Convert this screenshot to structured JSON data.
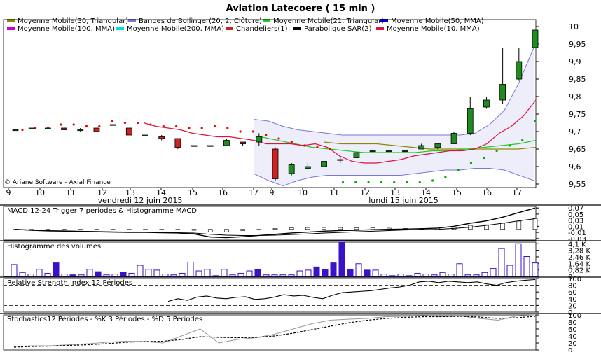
{
  "window": {
    "title": "Aviation Latecoere   ( 15 min )",
    "copyright": "© Ariane Software - Axial Finance"
  },
  "legend": [
    {
      "label": "Moyenne Mobile(30, Triangular)",
      "color": "#8a8a00"
    },
    {
      "label": "Bandes de Bollinger(20, 2, Clôture)",
      "color": "#7777dd"
    },
    {
      "label": "Moyenne Mobile(21, Triangular)",
      "color": "#22cc22"
    },
    {
      "label": "Moyenne Mobile(50, MMA)",
      "color": "#0000cc"
    },
    {
      "label": "Moyenne Mobile(100, MMA)",
      "color": "#cc00cc"
    },
    {
      "label": "Moyenne Mobile(200, MMA)",
      "color": "#00dddd"
    },
    {
      "label": "Chandeliers(1)",
      "color": "#cc2222"
    },
    {
      "label": "Parabolique SAR(2)",
      "color": "#000000"
    },
    {
      "label": "Moyenne Mobile(10, MMA)",
      "color": "#dd1144"
    }
  ],
  "chart_data": [
    {
      "type": "candlestick",
      "title": "Aviation Latecoere   ( 15 min )",
      "ylim": [
        9.54,
        10.02
      ],
      "y_ticks": [
        "10",
        "9,95",
        "9,9",
        "9,85",
        "9,8",
        "9,75",
        "9,7",
        "9,65",
        "9,6",
        "9,55"
      ],
      "y_tick_values": [
        10,
        9.95,
        9.9,
        9.85,
        9.8,
        9.75,
        9.7,
        9.65,
        9.6,
        9.55
      ],
      "x_tick_labels": [
        "9",
        "10",
        "11",
        "12",
        "13",
        "14",
        "15",
        "16",
        "17",
        "9",
        "10",
        "11",
        "12",
        "13",
        "14",
        "15",
        "16",
        "17"
      ],
      "day_labels": [
        "vendredi 12 juin 2015",
        "lundi 15 juin 2015"
      ],
      "candles": [
        {
          "o": 9.705,
          "h": 9.705,
          "l": 9.705,
          "c": 9.705
        },
        {
          "o": 9.71,
          "h": 9.71,
          "l": 9.71,
          "c": 9.71
        },
        {
          "o": 9.71,
          "h": 9.71,
          "l": 9.71,
          "c": 9.71
        },
        {
          "o": 9.71,
          "h": 9.715,
          "l": 9.7,
          "c": 9.705
        },
        {
          "o": 9.705,
          "h": 9.71,
          "l": 9.7,
          "c": 9.705
        },
        {
          "o": 9.71,
          "h": 9.71,
          "l": 9.7,
          "c": 9.7
        },
        {
          "o": 9.72,
          "h": 9.72,
          "l": 9.72,
          "c": 9.72
        },
        {
          "o": 9.71,
          "h": 9.71,
          "l": 9.69,
          "c": 9.69
        },
        {
          "o": 9.69,
          "h": 9.69,
          "l": 9.69,
          "c": 9.69
        },
        {
          "o": 9.685,
          "h": 9.69,
          "l": 9.675,
          "c": 9.68
        },
        {
          "o": 9.68,
          "h": 9.68,
          "l": 9.65,
          "c": 9.655
        },
        {
          "o": 9.66,
          "h": 9.66,
          "l": 9.66,
          "c": 9.66
        },
        {
          "o": 9.66,
          "h": 9.66,
          "l": 9.66,
          "c": 9.66
        },
        {
          "o": 9.66,
          "h": 9.68,
          "l": 9.66,
          "c": 9.675
        },
        {
          "o": 9.67,
          "h": 9.67,
          "l": 9.66,
          "c": 9.665
        },
        {
          "o": 9.67,
          "h": 9.695,
          "l": 9.66,
          "c": 9.685
        },
        {
          "o": 9.65,
          "h": 9.655,
          "l": 9.56,
          "c": 9.565
        },
        {
          "o": 9.58,
          "h": 9.61,
          "l": 9.575,
          "c": 9.605
        },
        {
          "o": 9.595,
          "h": 9.61,
          "l": 9.59,
          "c": 9.6
        },
        {
          "o": 9.6,
          "h": 9.615,
          "l": 9.6,
          "c": 9.615
        },
        {
          "o": 9.62,
          "h": 9.63,
          "l": 9.61,
          "c": 9.62
        },
        {
          "o": 9.625,
          "h": 9.64,
          "l": 9.625,
          "c": 9.64
        },
        {
          "o": 9.645,
          "h": 9.645,
          "l": 9.645,
          "c": 9.645
        },
        {
          "o": 9.645,
          "h": 9.645,
          "l": 9.645,
          "c": 9.645
        },
        {
          "o": 9.645,
          "h": 9.645,
          "l": 9.645,
          "c": 9.645
        },
        {
          "o": 9.65,
          "h": 9.665,
          "l": 9.65,
          "c": 9.66
        },
        {
          "o": 9.655,
          "h": 9.665,
          "l": 9.65,
          "c": 9.665
        },
        {
          "o": 9.665,
          "h": 9.7,
          "l": 9.665,
          "c": 9.695
        },
        {
          "o": 9.695,
          "h": 9.8,
          "l": 9.69,
          "c": 9.765
        },
        {
          "o": 9.77,
          "h": 9.8,
          "l": 9.765,
          "c": 9.79
        },
        {
          "o": 9.79,
          "h": 9.94,
          "l": 9.78,
          "c": 9.835
        },
        {
          "o": 9.85,
          "h": 9.94,
          "l": 9.845,
          "c": 9.9
        },
        {
          "o": 9.94,
          "h": 9.99,
          "l": 9.94,
          "c": 9.99
        }
      ],
      "bollinger": {
        "upper": [
          9.735,
          9.73,
          9.715,
          9.705,
          9.7,
          9.695,
          9.69,
          9.69,
          9.69,
          9.69,
          9.69,
          9.69,
          9.69,
          9.69,
          9.69,
          9.695,
          9.72,
          9.76,
          9.84,
          9.94
        ],
        "lower": [
          9.58,
          9.56,
          9.545,
          9.56,
          9.57,
          9.575,
          9.575,
          9.575,
          9.575,
          9.575,
          9.575,
          9.58,
          9.585,
          9.59,
          9.59,
          9.595,
          9.595,
          9.59,
          9.575,
          9.56
        ]
      },
      "mm10": [
        9.725,
        9.715,
        9.71,
        9.705,
        9.695,
        9.69,
        9.685,
        9.685,
        9.68,
        9.675,
        9.665,
        9.665,
        9.665,
        9.66,
        9.665,
        9.655,
        9.63,
        9.615,
        9.61,
        9.61,
        9.615,
        9.62,
        9.63,
        9.635,
        9.64,
        9.645,
        9.645,
        9.65,
        9.665,
        9.695,
        9.715,
        9.745,
        9.79
      ],
      "mm21": [
        9.685,
        9.675,
        9.665,
        9.655,
        9.65,
        9.645,
        9.64,
        9.64,
        9.64,
        9.64,
        9.645,
        9.645,
        9.65,
        9.655,
        9.66,
        9.665,
        9.675
      ],
      "mm30": [
        9.67,
        9.665,
        9.665,
        9.665,
        9.66,
        9.655,
        9.65,
        9.65,
        9.65,
        9.65,
        9.65,
        9.65,
        9.655
      ],
      "sar": [
        9.705,
        9.71,
        9.71,
        9.72,
        9.72,
        9.715,
        9.715,
        9.73,
        9.725,
        9.725,
        9.72,
        9.715,
        9.715,
        9.71,
        9.71,
        9.715,
        9.71,
        9.7,
        9.7,
        9.69,
        9.68,
        9.67,
        9.66,
        9.655,
        9.65,
        9.555,
        9.555,
        9.555,
        9.555,
        9.555,
        9.555,
        9.555,
        9.56,
        9.57,
        9.59,
        9.61,
        9.625,
        9.645,
        9.66,
        9.675,
        9.73
      ]
    },
    {
      "type": "line",
      "title": "MACD 12-24   Trigger 7 periodes & Histogramme MACD",
      "y_ticks": [
        "0,07",
        "0,05",
        "0,03",
        "0,01",
        "-0,01",
        "-0,03"
      ],
      "y_tick_values": [
        0.07,
        0.05,
        0.03,
        0.01,
        -0.01,
        -0.03
      ],
      "ylim": [
        -0.035,
        0.075
      ],
      "macd": [
        0.0,
        -0.003,
        -0.005,
        -0.006,
        -0.007,
        -0.008,
        -0.009,
        -0.01,
        -0.01,
        -0.011,
        -0.012,
        -0.015,
        -0.025,
        -0.027,
        -0.024,
        -0.02,
        -0.016,
        -0.012,
        -0.009,
        -0.006,
        -0.004,
        -0.003,
        -0.001,
        0.0,
        0.001,
        0.002,
        0.004,
        0.01,
        0.02,
        0.028,
        0.04,
        0.055,
        0.07
      ],
      "signal": [
        0.0,
        -0.002,
        -0.004,
        -0.005,
        -0.006,
        -0.007,
        -0.008,
        -0.009,
        -0.009,
        -0.01,
        -0.011,
        -0.012,
        -0.016,
        -0.019,
        -0.02,
        -0.02,
        -0.019,
        -0.017,
        -0.015,
        -0.012,
        -0.01,
        -0.008,
        -0.006,
        -0.004,
        -0.002,
        -0.001,
        0.0,
        0.003,
        0.007,
        0.013,
        0.02,
        0.028,
        0.035
      ],
      "hist": [
        0.0,
        -0.001,
        -0.001,
        -0.001,
        -0.001,
        -0.001,
        -0.001,
        -0.001,
        -0.001,
        -0.001,
        -0.001,
        -0.003,
        -0.009,
        -0.008,
        -0.004,
        0.0,
        0.003,
        0.005,
        0.006,
        0.006,
        0.006,
        0.005,
        0.005,
        0.004,
        0.003,
        0.003,
        0.004,
        0.007,
        0.013,
        0.015,
        0.02,
        0.027,
        0.035
      ]
    },
    {
      "type": "bar",
      "title": "Histogramme des volumes",
      "y_ticks": [
        "4,1 K",
        "3,28 K",
        "2,46 K",
        "1,64 K",
        "0,82 K",
        "0"
      ],
      "y_tick_values": [
        4.1,
        3.28,
        2.46,
        1.64,
        0.82,
        0
      ],
      "ylim": [
        0,
        4.3
      ],
      "values": [
        1.5,
        0.5,
        0.3,
        0.9,
        0.4,
        1.7,
        0.3,
        0.2,
        0.2,
        0.9,
        0.6,
        0.2,
        0.3,
        0.5,
        0.4,
        1.4,
        0.9,
        0.8,
        0.3,
        0.2,
        0.4,
        1.8,
        0.7,
        0.9,
        0.1,
        0.9,
        0.2,
        0.4,
        0.7,
        0.9,
        0.2,
        0.2,
        0.2,
        0.2,
        0.7,
        0.8,
        1.2,
        0.9,
        1.7,
        4.3,
        0.9,
        1.6,
        0.8,
        0.8,
        0.3,
        0.1,
        0.3,
        0.1,
        0.4,
        0.3,
        0.2,
        0.5,
        0.3,
        1.6,
        0.2,
        0.2,
        0.5,
        1.0,
        3.5,
        1.4,
        4.1,
        2.5,
        1.7
      ],
      "filled": [
        false,
        false,
        false,
        false,
        false,
        true,
        false,
        true,
        false,
        false,
        true,
        false,
        false,
        true,
        false,
        false,
        false,
        false,
        false,
        false,
        false,
        false,
        false,
        false,
        false,
        false,
        false,
        false,
        false,
        true,
        false,
        false,
        false,
        false,
        false,
        false,
        true,
        true,
        true,
        true,
        true,
        false,
        true,
        false,
        false,
        false,
        false,
        false,
        false,
        false,
        false,
        false,
        false,
        false,
        false,
        false,
        false,
        false,
        false,
        false,
        false,
        false,
        false
      ]
    },
    {
      "type": "line",
      "title": "Relative Strength Index 12 Périodes",
      "y_ticks": [
        "100",
        "80",
        "60",
        "40",
        "20",
        "0"
      ],
      "y_tick_values": [
        100,
        80,
        60,
        40,
        20,
        0
      ],
      "ylim": [
        0,
        100
      ],
      "levels": [
        80,
        20
      ],
      "values": [
        32,
        40,
        35,
        45,
        48,
        42,
        40,
        44,
        46,
        38,
        40,
        45,
        52,
        48,
        50,
        44,
        40,
        50,
        58,
        60,
        62,
        64,
        68,
        72,
        75,
        80,
        90,
        92,
        88,
        92,
        90,
        88,
        90,
        84,
        80,
        88,
        92,
        95,
        97
      ]
    },
    {
      "type": "line",
      "title": "Stochastics12 Périodes   -   %K 3 Périodes   -   %D 5 Périodes",
      "y_ticks": [
        "100",
        "80",
        "60",
        "40",
        "20",
        "0"
      ],
      "y_tick_values": [
        100,
        80,
        60,
        40,
        20,
        0
      ],
      "ylim": [
        0,
        100
      ],
      "k": [
        10,
        12,
        12,
        15,
        18,
        22,
        25,
        24,
        20,
        40,
        60,
        20,
        30,
        35,
        45,
        60,
        75,
        85,
        88,
        90,
        95,
        96,
        98,
        95,
        97,
        90,
        85,
        97,
        100
      ],
      "d": [
        8,
        10,
        11,
        13,
        15,
        18,
        22,
        24,
        25,
        30,
        38,
        36,
        35,
        36,
        40,
        48,
        58,
        68,
        78,
        85,
        90,
        93,
        95,
        95,
        96,
        94,
        90,
        92,
        96
      ]
    }
  ]
}
